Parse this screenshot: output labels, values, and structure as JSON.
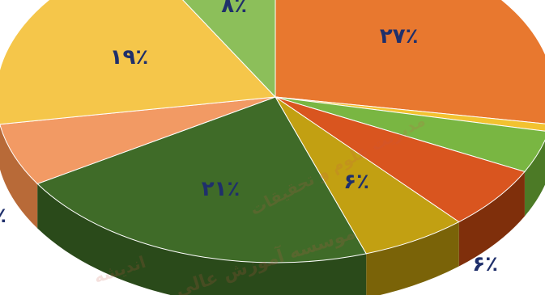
{
  "chart_data": {
    "type": "pie",
    "style": "3d",
    "title": "",
    "slices": [
      {
        "label": "۲۷٪",
        "value": 27,
        "color": "#e8782f",
        "side": "#a84f17"
      },
      {
        "label": "",
        "value": 0.7,
        "color": "#f2c230",
        "side": "#b38a14"
      },
      {
        "label": "",
        "value": 4,
        "color": "#79b642",
        "side": "#4c7a26"
      },
      {
        "label": "",
        "value": 6,
        "color": "#d9551f",
        "side": "#7f2f0b"
      },
      {
        "label": "۶٪",
        "value": 6,
        "color": "#c2a012",
        "side": "#7a6308"
      },
      {
        "label": "۲۱٪",
        "value": 21,
        "color": "#3f6b28",
        "side": "#2a4a1a"
      },
      {
        "label": "",
        "value": 6,
        "color": "#f29a64",
        "side": "#b86a38"
      },
      {
        "label": "۱۹٪",
        "value": 19,
        "color": "#f5c64a",
        "side": "#b58f22"
      },
      {
        "label": "۸٪",
        "value": 8,
        "color": "#8cbf5a",
        "side": "#5e8a35"
      }
    ],
    "outside_labels": [
      {
        "text": "۶٪",
        "anchor": "bottom-right"
      },
      {
        "text": "٪",
        "anchor": "left"
      }
    ]
  },
  "watermark": {
    "lines": [
      "موسسه آموزش عالی",
      "اندیشه",
      "مدیریت علوم و تحقیقات"
    ]
  }
}
